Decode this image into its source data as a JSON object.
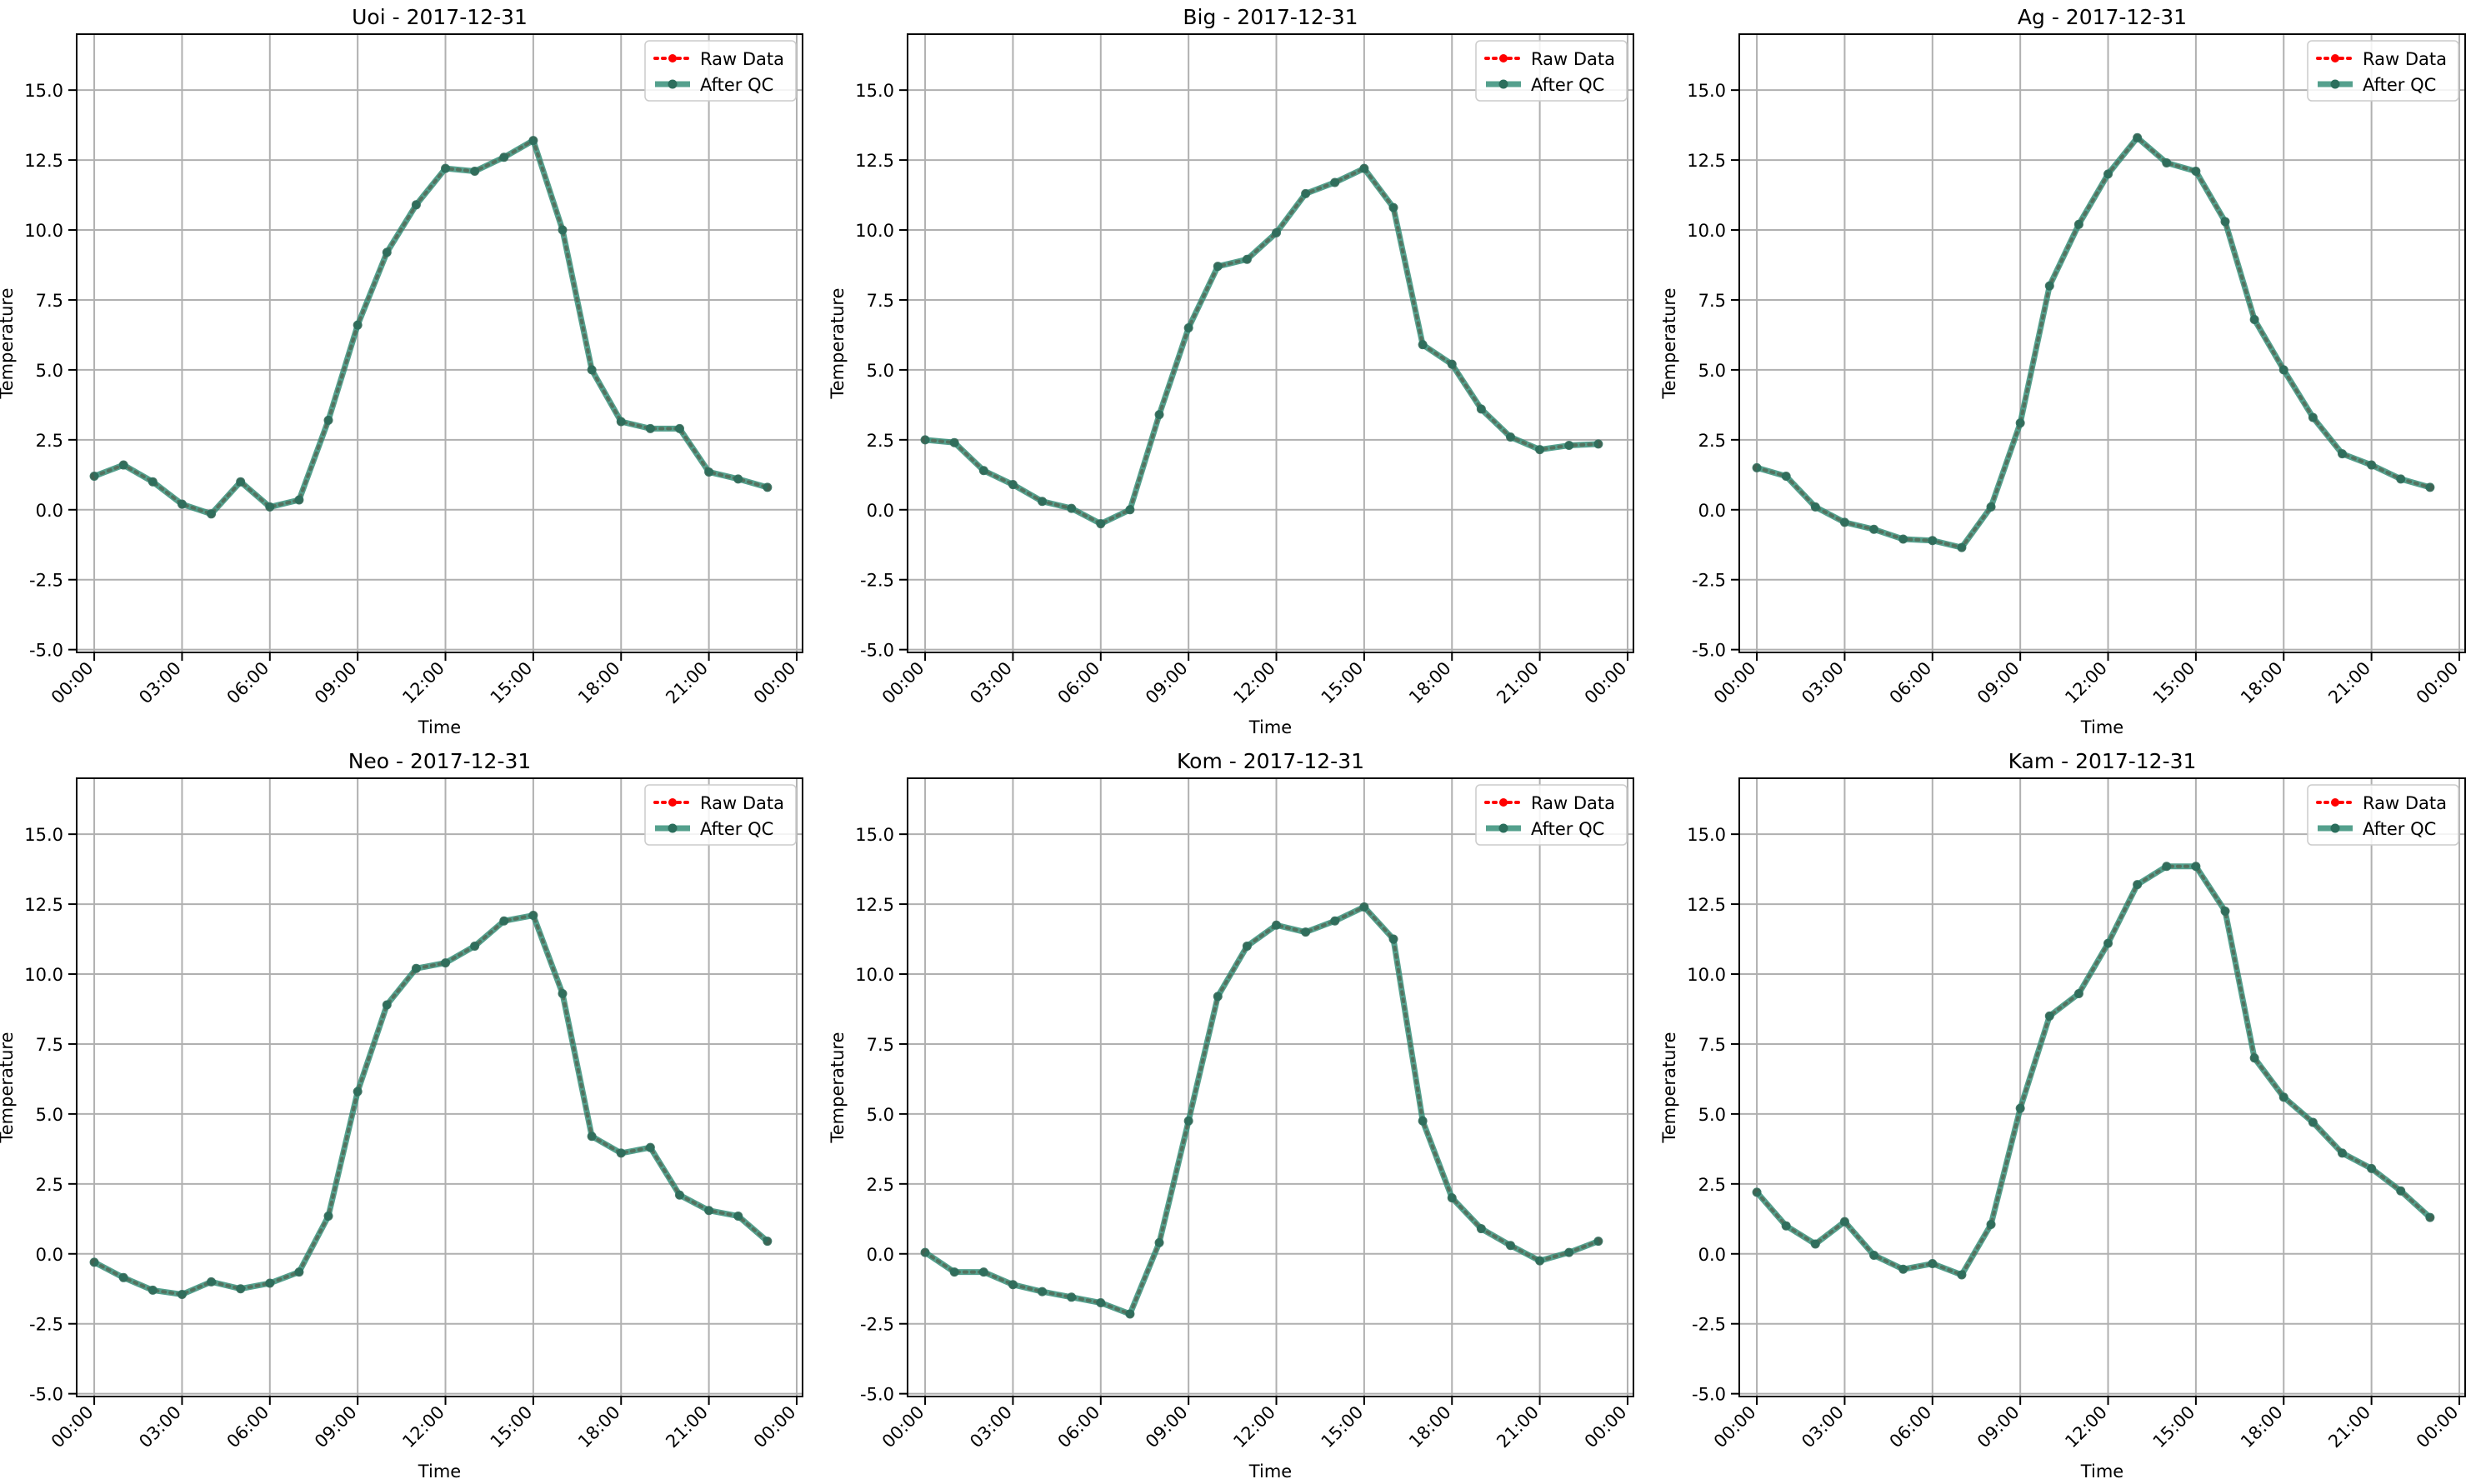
{
  "chart_data": [
    {
      "type": "line",
      "title": "Uoi - 2017-12-31",
      "xlabel": "Time",
      "ylabel": "Temperature",
      "ylim": [
        -5.1,
        17.0
      ],
      "xlim_hours": [
        -0.6,
        24.2
      ],
      "yticks": [
        -5.0,
        -2.5,
        0.0,
        2.5,
        5.0,
        7.5,
        10.0,
        12.5,
        15.0
      ],
      "xticks": [
        "00:00",
        "03:00",
        "06:00",
        "09:00",
        "12:00",
        "15:00",
        "18:00",
        "21:00",
        "00:00"
      ],
      "grid": true,
      "legend": "top-right",
      "x": [
        "00:00",
        "01:00",
        "02:00",
        "03:00",
        "04:00",
        "05:00",
        "06:00",
        "07:00",
        "08:00",
        "09:00",
        "10:00",
        "11:00",
        "12:00",
        "13:00",
        "14:00",
        "15:00",
        "16:00",
        "17:00",
        "18:00",
        "19:00",
        "20:00",
        "21:00",
        "22:00",
        "23:00"
      ],
      "series": [
        {
          "name": "Raw Data",
          "color": "#ff0000",
          "values": [
            1.2,
            1.6,
            1.0,
            0.2,
            -0.15,
            1.0,
            0.1,
            0.35,
            3.2,
            6.6,
            9.2,
            10.9,
            12.2,
            12.1,
            12.6,
            13.2,
            10.0,
            5.0,
            3.15,
            2.9,
            2.9,
            1.35,
            1.1,
            0.8
          ]
        },
        {
          "name": "After QC",
          "color": "#2e8b74",
          "values": [
            1.2,
            1.6,
            1.0,
            0.2,
            -0.15,
            1.0,
            0.1,
            0.35,
            3.2,
            6.6,
            9.2,
            10.9,
            12.2,
            12.1,
            12.6,
            13.2,
            10.0,
            5.0,
            3.15,
            2.9,
            2.9,
            1.35,
            1.1,
            0.8
          ]
        }
      ]
    },
    {
      "type": "line",
      "title": "Big - 2017-12-31",
      "xlabel": "Time",
      "ylabel": "Temperature",
      "ylim": [
        -5.1,
        17.0
      ],
      "xlim_hours": [
        -0.6,
        24.2
      ],
      "yticks": [
        -5.0,
        -2.5,
        0.0,
        2.5,
        5.0,
        7.5,
        10.0,
        12.5,
        15.0
      ],
      "xticks": [
        "00:00",
        "03:00",
        "06:00",
        "09:00",
        "12:00",
        "15:00",
        "18:00",
        "21:00",
        "00:00"
      ],
      "grid": true,
      "legend": "top-right",
      "x": [
        "00:00",
        "01:00",
        "02:00",
        "03:00",
        "04:00",
        "05:00",
        "06:00",
        "07:00",
        "08:00",
        "09:00",
        "10:00",
        "11:00",
        "12:00",
        "13:00",
        "14:00",
        "15:00",
        "16:00",
        "17:00",
        "18:00",
        "19:00",
        "20:00",
        "21:00",
        "22:00",
        "23:00"
      ],
      "series": [
        {
          "name": "Raw Data",
          "color": "#ff0000",
          "values": [
            2.5,
            2.4,
            1.4,
            0.9,
            0.3,
            0.05,
            -0.5,
            0.0,
            3.4,
            6.5,
            8.7,
            8.95,
            9.9,
            11.3,
            11.7,
            12.2,
            10.8,
            5.9,
            5.2,
            3.6,
            2.6,
            2.15,
            2.3,
            2.35
          ]
        },
        {
          "name": "After QC",
          "color": "#2e8b74",
          "values": [
            2.5,
            2.4,
            1.4,
            0.9,
            0.3,
            0.05,
            -0.5,
            0.0,
            3.4,
            6.5,
            8.7,
            8.95,
            9.9,
            11.3,
            11.7,
            12.2,
            10.8,
            5.9,
            5.2,
            3.6,
            2.6,
            2.15,
            2.3,
            2.35
          ]
        }
      ]
    },
    {
      "type": "line",
      "title": "Ag - 2017-12-31",
      "xlabel": "Time",
      "ylabel": "Temperature",
      "ylim": [
        -5.1,
        17.0
      ],
      "xlim_hours": [
        -0.6,
        24.2
      ],
      "yticks": [
        -5.0,
        -2.5,
        0.0,
        2.5,
        5.0,
        7.5,
        10.0,
        12.5,
        15.0
      ],
      "xticks": [
        "00:00",
        "03:00",
        "06:00",
        "09:00",
        "12:00",
        "15:00",
        "18:00",
        "21:00",
        "00:00"
      ],
      "grid": true,
      "legend": "top-right",
      "x": [
        "00:00",
        "01:00",
        "02:00",
        "03:00",
        "04:00",
        "05:00",
        "06:00",
        "07:00",
        "08:00",
        "09:00",
        "10:00",
        "11:00",
        "12:00",
        "13:00",
        "14:00",
        "15:00",
        "16:00",
        "17:00",
        "18:00",
        "19:00",
        "20:00",
        "21:00",
        "22:00",
        "23:00"
      ],
      "series": [
        {
          "name": "Raw Data",
          "color": "#ff0000",
          "values": [
            1.5,
            1.2,
            0.1,
            -0.45,
            -0.7,
            -1.05,
            -1.1,
            -1.35,
            0.1,
            3.1,
            8.0,
            10.2,
            12.0,
            13.3,
            12.4,
            12.1,
            10.3,
            6.8,
            5.0,
            3.3,
            2.0,
            1.6,
            1.1,
            0.8
          ]
        },
        {
          "name": "After QC",
          "color": "#2e8b74",
          "values": [
            1.5,
            1.2,
            0.1,
            -0.45,
            -0.7,
            -1.05,
            -1.1,
            -1.35,
            0.1,
            3.1,
            8.0,
            10.2,
            12.0,
            13.3,
            12.4,
            12.1,
            10.3,
            6.8,
            5.0,
            3.3,
            2.0,
            1.6,
            1.1,
            0.8
          ]
        }
      ]
    },
    {
      "type": "line",
      "title": "Neo - 2017-12-31",
      "xlabel": "Time",
      "ylabel": "Temperature",
      "ylim": [
        -5.1,
        17.0
      ],
      "xlim_hours": [
        -0.6,
        24.2
      ],
      "yticks": [
        -5.0,
        -2.5,
        0.0,
        2.5,
        5.0,
        7.5,
        10.0,
        12.5,
        15.0
      ],
      "xticks": [
        "00:00",
        "03:00",
        "06:00",
        "09:00",
        "12:00",
        "15:00",
        "18:00",
        "21:00",
        "00:00"
      ],
      "grid": true,
      "legend": "top-right",
      "x": [
        "00:00",
        "01:00",
        "02:00",
        "03:00",
        "04:00",
        "05:00",
        "06:00",
        "07:00",
        "08:00",
        "09:00",
        "10:00",
        "11:00",
        "12:00",
        "13:00",
        "14:00",
        "15:00",
        "16:00",
        "17:00",
        "18:00",
        "19:00",
        "20:00",
        "21:00",
        "22:00",
        "23:00"
      ],
      "series": [
        {
          "name": "Raw Data",
          "color": "#ff0000",
          "values": [
            -0.3,
            -0.85,
            -1.3,
            -1.45,
            -1.0,
            -1.25,
            -1.05,
            -0.65,
            1.35,
            5.8,
            8.9,
            10.2,
            10.4,
            11.0,
            11.9,
            12.1,
            9.3,
            4.2,
            3.6,
            3.8,
            2.1,
            1.55,
            1.35,
            0.45
          ]
        },
        {
          "name": "After QC",
          "color": "#2e8b74",
          "values": [
            -0.3,
            -0.85,
            -1.3,
            -1.45,
            -1.0,
            -1.25,
            -1.05,
            -0.65,
            1.35,
            5.8,
            8.9,
            10.2,
            10.4,
            11.0,
            11.9,
            12.1,
            9.3,
            4.2,
            3.6,
            3.8,
            2.1,
            1.55,
            1.35,
            0.45
          ]
        }
      ]
    },
    {
      "type": "line",
      "title": "Kom - 2017-12-31",
      "xlabel": "Time",
      "ylabel": "Temperature",
      "ylim": [
        -5.1,
        17.0
      ],
      "xlim_hours": [
        -0.6,
        24.2
      ],
      "yticks": [
        -5.0,
        -2.5,
        0.0,
        2.5,
        5.0,
        7.5,
        10.0,
        12.5,
        15.0
      ],
      "xticks": [
        "00:00",
        "03:00",
        "06:00",
        "09:00",
        "12:00",
        "15:00",
        "18:00",
        "21:00",
        "00:00"
      ],
      "grid": true,
      "legend": "top-right",
      "x": [
        "00:00",
        "01:00",
        "02:00",
        "03:00",
        "04:00",
        "05:00",
        "06:00",
        "07:00",
        "08:00",
        "09:00",
        "10:00",
        "11:00",
        "12:00",
        "13:00",
        "14:00",
        "15:00",
        "16:00",
        "17:00",
        "18:00",
        "19:00",
        "20:00",
        "21:00",
        "22:00",
        "23:00"
      ],
      "series": [
        {
          "name": "Raw Data",
          "color": "#ff0000",
          "values": [
            0.05,
            -0.65,
            -0.65,
            -1.1,
            -1.35,
            -1.55,
            -1.75,
            -2.15,
            0.4,
            4.75,
            9.2,
            11.0,
            11.75,
            11.5,
            11.9,
            12.4,
            11.25,
            4.75,
            2.0,
            0.9,
            0.3,
            -0.25,
            0.05,
            0.45
          ]
        },
        {
          "name": "After QC",
          "color": "#2e8b74",
          "values": [
            0.05,
            -0.65,
            -0.65,
            -1.1,
            -1.35,
            -1.55,
            -1.75,
            -2.15,
            0.4,
            4.75,
            9.2,
            11.0,
            11.75,
            11.5,
            11.9,
            12.4,
            11.25,
            4.75,
            2.0,
            0.9,
            0.3,
            -0.25,
            0.05,
            0.45
          ]
        }
      ]
    },
    {
      "type": "line",
      "title": "Kam - 2017-12-31",
      "xlabel": "Time",
      "ylabel": "Temperature",
      "ylim": [
        -5.1,
        17.0
      ],
      "xlim_hours": [
        -0.6,
        24.2
      ],
      "yticks": [
        -5.0,
        -2.5,
        0.0,
        2.5,
        5.0,
        7.5,
        10.0,
        12.5,
        15.0
      ],
      "xticks": [
        "00:00",
        "03:00",
        "06:00",
        "09:00",
        "12:00",
        "15:00",
        "18:00",
        "21:00",
        "00:00"
      ],
      "grid": true,
      "legend": "top-right",
      "x": [
        "00:00",
        "01:00",
        "02:00",
        "03:00",
        "04:00",
        "05:00",
        "06:00",
        "07:00",
        "08:00",
        "09:00",
        "10:00",
        "11:00",
        "12:00",
        "13:00",
        "14:00",
        "15:00",
        "16:00",
        "17:00",
        "18:00",
        "19:00",
        "20:00",
        "21:00",
        "22:00",
        "23:00"
      ],
      "series": [
        {
          "name": "Raw Data",
          "color": "#ff0000",
          "values": [
            2.2,
            1.0,
            0.35,
            1.15,
            -0.05,
            -0.55,
            -0.35,
            -0.75,
            1.05,
            5.2,
            8.5,
            9.3,
            11.1,
            13.2,
            13.85,
            13.85,
            12.25,
            7.0,
            5.6,
            4.7,
            3.6,
            3.05,
            2.25,
            1.3
          ]
        },
        {
          "name": "After QC",
          "color": "#2e8b74",
          "values": [
            2.2,
            1.0,
            0.35,
            1.15,
            -0.05,
            -0.55,
            -0.35,
            -0.75,
            1.05,
            5.2,
            8.5,
            9.3,
            11.1,
            13.2,
            13.85,
            13.85,
            12.25,
            7.0,
            5.6,
            4.7,
            3.6,
            3.05,
            2.25,
            1.3
          ]
        }
      ]
    }
  ]
}
